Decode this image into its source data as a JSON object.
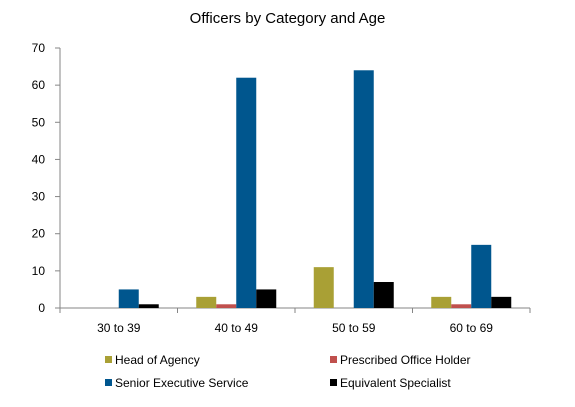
{
  "chart_data": {
    "type": "bar",
    "title": "Officers by Category and Age",
    "categories": [
      "30 to 39",
      "40 to 49",
      "50 to 59",
      "60 to 69"
    ],
    "series": [
      {
        "name": "Head of Agency",
        "color": "#A9A035",
        "values": [
          0,
          3,
          11,
          3
        ]
      },
      {
        "name": "Prescribed Office Holder",
        "color": "#C0504D",
        "values": [
          0,
          1,
          0,
          1
        ]
      },
      {
        "name": "Senior Executive Service",
        "color": "#00568E",
        "values": [
          5,
          62,
          64,
          17
        ]
      },
      {
        "name": "Equivalent Specialist",
        "color": "#000000",
        "values": [
          1,
          5,
          7,
          3
        ]
      }
    ],
    "yticks": [
      "0",
      "10",
      "20",
      "30",
      "40",
      "50",
      "60",
      "70"
    ],
    "ylim": [
      0,
      70
    ],
    "legend_position": "bottom",
    "grid": false
  }
}
